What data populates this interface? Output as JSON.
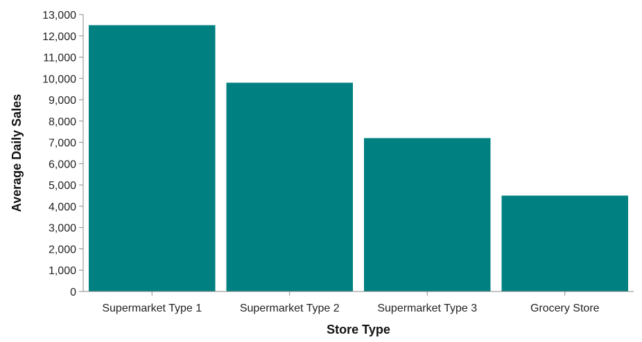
{
  "chart_data": {
    "type": "bar",
    "title": "",
    "xlabel": "Store Type",
    "ylabel": "Average Daily Sales",
    "categories": [
      "Supermarket Type 1",
      "Supermarket Type 2",
      "Supermarket Type 3",
      "Grocery Store"
    ],
    "values": [
      12500,
      9800,
      7200,
      4500
    ],
    "ylim": [
      0,
      13000
    ],
    "yticks": [
      0,
      1000,
      2000,
      3000,
      4000,
      5000,
      6000,
      7000,
      8000,
      9000,
      10000,
      11000,
      12000,
      13000
    ],
    "ytick_labels": [
      "0",
      "1,000",
      "2,000",
      "3,000",
      "4,000",
      "5,000",
      "6,000",
      "7,000",
      "8,000",
      "9,000",
      "10,000",
      "11,000",
      "12,000",
      "13,000"
    ],
    "bar_color": "#008080",
    "grid": false,
    "legend": "none"
  }
}
